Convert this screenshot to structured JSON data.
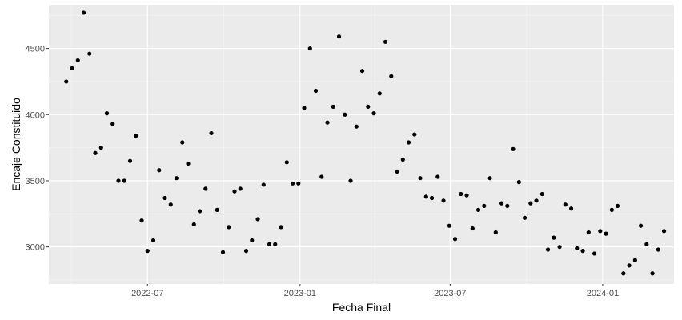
{
  "chart_data": {
    "type": "scatter",
    "title": "",
    "xlabel": "Fecha Final",
    "ylabel": "Encaje Constituido",
    "x_is_date": true,
    "xlim": [
      "2022-03-04",
      "2024-03-27"
    ],
    "ylim": [
      2720,
      4830
    ],
    "grid": true,
    "legend": "none",
    "x_ticks": [
      {
        "value": "2022-07-01",
        "label": "2022-07"
      },
      {
        "value": "2023-01-01",
        "label": "2023-01"
      },
      {
        "value": "2023-07-01",
        "label": "2023-07"
      },
      {
        "value": "2024-01-01",
        "label": "2024-01"
      }
    ],
    "y_ticks": [
      3000,
      3500,
      4000,
      4500
    ],
    "points": [
      {
        "x": "2022-03-25",
        "y": 4250
      },
      {
        "x": "2022-04-01",
        "y": 4350
      },
      {
        "x": "2022-04-08",
        "y": 4410
      },
      {
        "x": "2022-04-15",
        "y": 4770
      },
      {
        "x": "2022-04-22",
        "y": 4460
      },
      {
        "x": "2022-04-29",
        "y": 3710
      },
      {
        "x": "2022-05-06",
        "y": 3750
      },
      {
        "x": "2022-05-13",
        "y": 4010
      },
      {
        "x": "2022-05-20",
        "y": 3930
      },
      {
        "x": "2022-05-27",
        "y": 3500
      },
      {
        "x": "2022-06-03",
        "y": 3500
      },
      {
        "x": "2022-06-10",
        "y": 3650
      },
      {
        "x": "2022-06-17",
        "y": 3840
      },
      {
        "x": "2022-06-24",
        "y": 3200
      },
      {
        "x": "2022-07-01",
        "y": 2970
      },
      {
        "x": "2022-07-08",
        "y": 3050
      },
      {
        "x": "2022-07-15",
        "y": 3580
      },
      {
        "x": "2022-07-22",
        "y": 3370
      },
      {
        "x": "2022-07-29",
        "y": 3320
      },
      {
        "x": "2022-08-05",
        "y": 3520
      },
      {
        "x": "2022-08-12",
        "y": 3790
      },
      {
        "x": "2022-08-19",
        "y": 3630
      },
      {
        "x": "2022-08-26",
        "y": 3170
      },
      {
        "x": "2022-09-02",
        "y": 3270
      },
      {
        "x": "2022-09-09",
        "y": 3440
      },
      {
        "x": "2022-09-16",
        "y": 3860
      },
      {
        "x": "2022-09-23",
        "y": 3280
      },
      {
        "x": "2022-09-30",
        "y": 2960
      },
      {
        "x": "2022-10-07",
        "y": 3150
      },
      {
        "x": "2022-10-14",
        "y": 3420
      },
      {
        "x": "2022-10-21",
        "y": 3440
      },
      {
        "x": "2022-10-28",
        "y": 2970
      },
      {
        "x": "2022-11-04",
        "y": 3050
      },
      {
        "x": "2022-11-11",
        "y": 3210
      },
      {
        "x": "2022-11-18",
        "y": 3470
      },
      {
        "x": "2022-11-25",
        "y": 3020
      },
      {
        "x": "2022-12-02",
        "y": 3020
      },
      {
        "x": "2022-12-09",
        "y": 3150
      },
      {
        "x": "2022-12-16",
        "y": 3640
      },
      {
        "x": "2022-12-23",
        "y": 3480
      },
      {
        "x": "2022-12-30",
        "y": 3480
      },
      {
        "x": "2023-01-06",
        "y": 4050
      },
      {
        "x": "2023-01-13",
        "y": 4500
      },
      {
        "x": "2023-01-20",
        "y": 4180
      },
      {
        "x": "2023-01-27",
        "y": 3530
      },
      {
        "x": "2023-02-03",
        "y": 3940
      },
      {
        "x": "2023-02-10",
        "y": 4060
      },
      {
        "x": "2023-02-17",
        "y": 4590
      },
      {
        "x": "2023-02-24",
        "y": 4000
      },
      {
        "x": "2023-03-03",
        "y": 3500
      },
      {
        "x": "2023-03-10",
        "y": 3910
      },
      {
        "x": "2023-03-17",
        "y": 4330
      },
      {
        "x": "2023-03-24",
        "y": 4060
      },
      {
        "x": "2023-03-31",
        "y": 4010
      },
      {
        "x": "2023-04-07",
        "y": 4160
      },
      {
        "x": "2023-04-14",
        "y": 4550
      },
      {
        "x": "2023-04-21",
        "y": 4290
      },
      {
        "x": "2023-04-28",
        "y": 3570
      },
      {
        "x": "2023-05-05",
        "y": 3660
      },
      {
        "x": "2023-05-12",
        "y": 3790
      },
      {
        "x": "2023-05-19",
        "y": 3850
      },
      {
        "x": "2023-05-26",
        "y": 3520
      },
      {
        "x": "2023-06-02",
        "y": 3380
      },
      {
        "x": "2023-06-09",
        "y": 3370
      },
      {
        "x": "2023-06-16",
        "y": 3530
      },
      {
        "x": "2023-06-23",
        "y": 3350
      },
      {
        "x": "2023-06-30",
        "y": 3160
      },
      {
        "x": "2023-07-07",
        "y": 3060
      },
      {
        "x": "2023-07-14",
        "y": 3400
      },
      {
        "x": "2023-07-21",
        "y": 3390
      },
      {
        "x": "2023-07-28",
        "y": 3140
      },
      {
        "x": "2023-08-04",
        "y": 3280
      },
      {
        "x": "2023-08-11",
        "y": 3310
      },
      {
        "x": "2023-08-18",
        "y": 3520
      },
      {
        "x": "2023-08-25",
        "y": 3110
      },
      {
        "x": "2023-09-01",
        "y": 3330
      },
      {
        "x": "2023-09-08",
        "y": 3310
      },
      {
        "x": "2023-09-15",
        "y": 3740
      },
      {
        "x": "2023-09-22",
        "y": 3490
      },
      {
        "x": "2023-09-29",
        "y": 3220
      },
      {
        "x": "2023-10-06",
        "y": 3330
      },
      {
        "x": "2023-10-13",
        "y": 3350
      },
      {
        "x": "2023-10-20",
        "y": 3400
      },
      {
        "x": "2023-10-27",
        "y": 2980
      },
      {
        "x": "2023-11-03",
        "y": 3070
      },
      {
        "x": "2023-11-10",
        "y": 3000
      },
      {
        "x": "2023-11-17",
        "y": 3320
      },
      {
        "x": "2023-11-24",
        "y": 3290
      },
      {
        "x": "2023-12-01",
        "y": 2990
      },
      {
        "x": "2023-12-08",
        "y": 2970
      },
      {
        "x": "2023-12-15",
        "y": 3110
      },
      {
        "x": "2023-12-22",
        "y": 2950
      },
      {
        "x": "2023-12-29",
        "y": 3120
      },
      {
        "x": "2024-01-05",
        "y": 3100
      },
      {
        "x": "2024-01-12",
        "y": 3280
      },
      {
        "x": "2024-01-19",
        "y": 3310
      },
      {
        "x": "2024-01-26",
        "y": 2800
      },
      {
        "x": "2024-02-02",
        "y": 2860
      },
      {
        "x": "2024-02-09",
        "y": 2900
      },
      {
        "x": "2024-02-16",
        "y": 3160
      },
      {
        "x": "2024-02-23",
        "y": 3020
      },
      {
        "x": "2024-03-01",
        "y": 2800
      },
      {
        "x": "2024-03-08",
        "y": 2980
      },
      {
        "x": "2024-03-15",
        "y": 3120
      }
    ]
  },
  "colors": {
    "panel_background": "#ebebeb",
    "gridline_major": "#ffffff",
    "gridline_minor": "#f5f5f5",
    "point": "#000000",
    "tick_text": "#4d4d4d",
    "tick_mark": "#333333",
    "axis_title": "#000000"
  }
}
